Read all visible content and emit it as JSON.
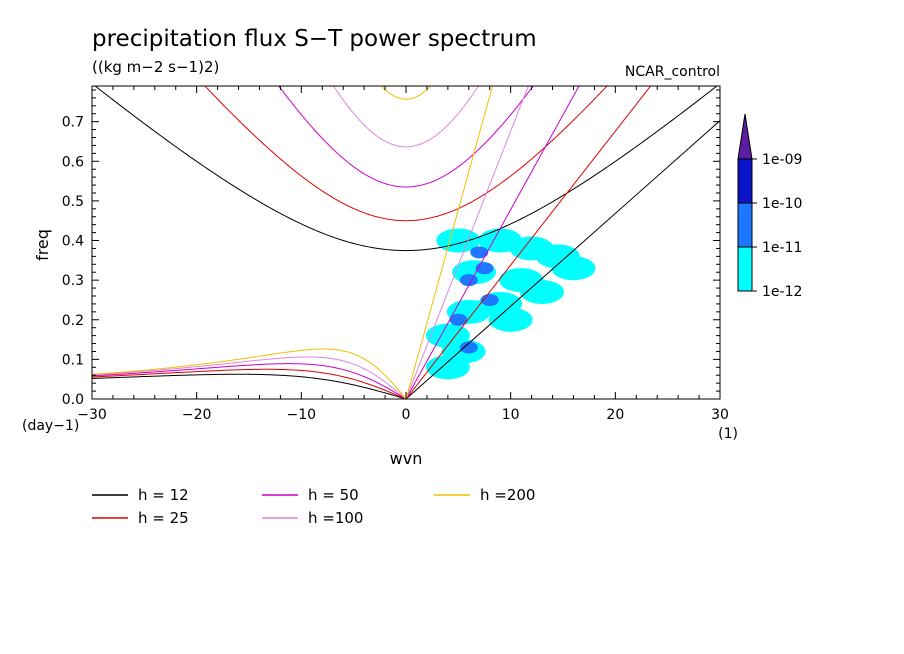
{
  "chart_data": {
    "type": "line",
    "title": "precipitation flux S−T power spectrum",
    "subtitle": "((kg m−2 s−1)2)",
    "case_label": "NCAR_control",
    "xlabel": "wvn",
    "ylabel": "freq",
    "x_unit_label": "(1)",
    "y_unit_label": "(day−1)",
    "xlim": [
      -30,
      30
    ],
    "ylim": [
      0,
      0.79
    ],
    "x_ticks": [
      -30,
      -20,
      -10,
      0,
      10,
      20,
      30
    ],
    "x_tick_labels": [
      "−30",
      "−20",
      "−10",
      "0",
      "10",
      "20",
      "30"
    ],
    "y_ticks": [
      0,
      0.1,
      0.2,
      0.3,
      0.4,
      0.5,
      0.6,
      0.7
    ],
    "y_tick_labels": [
      "0.0",
      "0.1",
      "0.2",
      "0.3",
      "0.4",
      "0.5",
      "0.6",
      "0.7"
    ],
    "series": [
      {
        "name": "h = 12",
        "equivalent_depth_m": 12,
        "color": "#000000"
      },
      {
        "name": "h = 25",
        "equivalent_depth_m": 25,
        "color": "#e00000"
      },
      {
        "name": "h = 50",
        "equivalent_depth_m": 50,
        "color": "#cc00cc"
      },
      {
        "name": "h =100",
        "equivalent_depth_m": 100,
        "color": "#dd88dd"
      },
      {
        "name": "h =200",
        "equivalent_depth_m": 200,
        "color": "#f0c000"
      }
    ],
    "colorbar": {
      "labels": [
        "1e-12",
        "1e-11",
        "1e-10",
        "1e-09"
      ],
      "colors": [
        "#00ffff",
        "#1e78ff",
        "#0a14c8",
        "#5a1e9e"
      ]
    },
    "spectral_blobs": [
      {
        "x": 6.5,
        "y": 0.32,
        "level": 0
      },
      {
        "x": 5.0,
        "y": 0.4,
        "level": 0
      },
      {
        "x": 9.0,
        "y": 0.4,
        "level": 0
      },
      {
        "x": 12.0,
        "y": 0.38,
        "level": 0
      },
      {
        "x": 14.5,
        "y": 0.36,
        "level": 0
      },
      {
        "x": 16.0,
        "y": 0.33,
        "level": 0
      },
      {
        "x": 11.0,
        "y": 0.3,
        "level": 0
      },
      {
        "x": 13.0,
        "y": 0.27,
        "level": 0
      },
      {
        "x": 9.0,
        "y": 0.24,
        "level": 0
      },
      {
        "x": 6.0,
        "y": 0.22,
        "level": 0
      },
      {
        "x": 4.0,
        "y": 0.16,
        "level": 0
      },
      {
        "x": 5.5,
        "y": 0.12,
        "level": 0
      },
      {
        "x": 4.0,
        "y": 0.08,
        "level": 0
      },
      {
        "x": 10.0,
        "y": 0.2,
        "level": 0
      },
      {
        "x": 7.0,
        "y": 0.37,
        "level": 1
      },
      {
        "x": 7.5,
        "y": 0.33,
        "level": 1
      },
      {
        "x": 6.0,
        "y": 0.3,
        "level": 1
      },
      {
        "x": 5.0,
        "y": 0.2,
        "level": 1
      },
      {
        "x": 8.0,
        "y": 0.25,
        "level": 1
      },
      {
        "x": 6.0,
        "y": 0.13,
        "level": 1
      }
    ]
  }
}
